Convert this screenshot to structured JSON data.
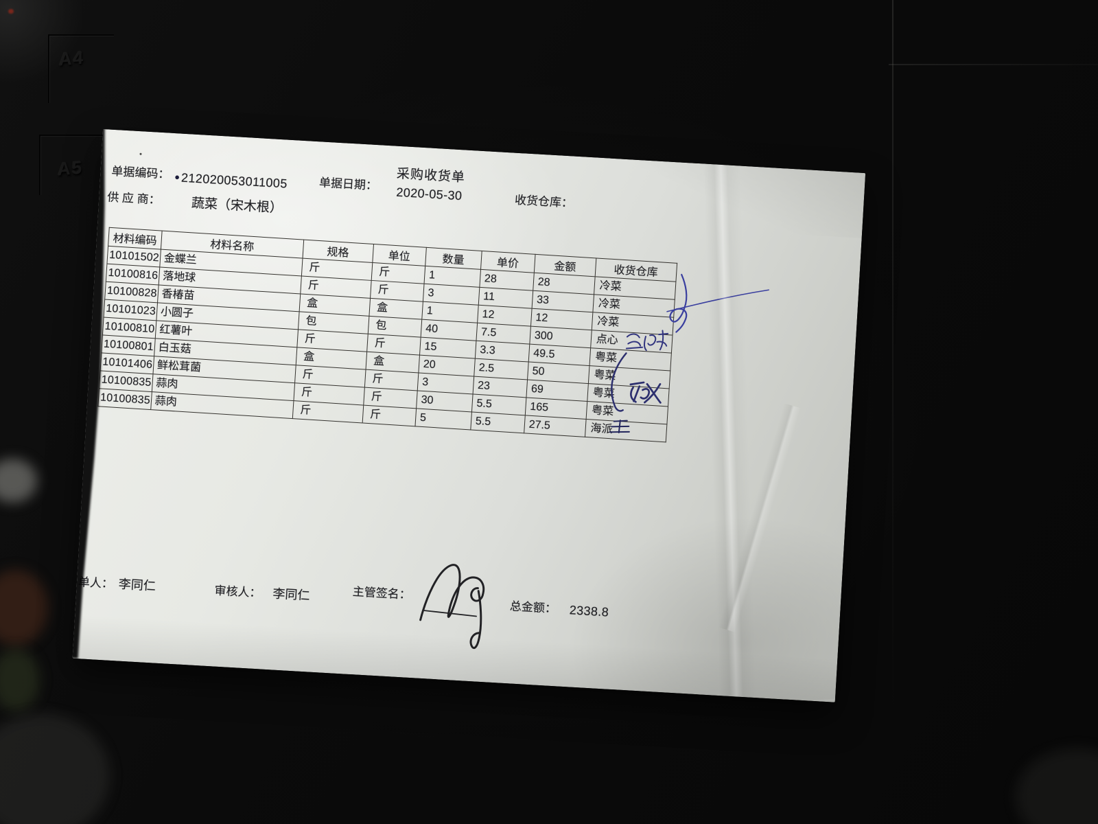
{
  "photo": {
    "tray_labels": [
      "A4",
      "A5"
    ]
  },
  "header": {
    "title": "采购收货单",
    "doc_code_label": "单据编码：",
    "doc_code": "212020053011005",
    "doc_date_label": "单据日期：",
    "doc_date": "2020-05-30",
    "recv_warehouse_label": "收货仓库：",
    "supplier_label": "供 应 商：",
    "supplier_value": "蔬菜（宋木根）"
  },
  "table": {
    "headers": [
      "材料编码",
      "材料名称",
      "规格",
      "单位",
      "数量",
      "单价",
      "金额",
      "收货仓库"
    ],
    "rows": [
      [
        "10101502",
        "金蝶兰",
        "斤",
        "斤",
        "1",
        "28",
        "28",
        "冷菜"
      ],
      [
        "10100816",
        "落地球",
        "斤",
        "斤",
        "3",
        "11",
        "33",
        "冷菜"
      ],
      [
        "10100828",
        "香椿苗",
        "盒",
        "盒",
        "1",
        "12",
        "12",
        "冷菜"
      ],
      [
        "10101023",
        "小圆子",
        "包",
        "包",
        "40",
        "7.5",
        "300",
        "点心"
      ],
      [
        "10100810",
        "红薯叶",
        "斤",
        "斤",
        "15",
        "3.3",
        "49.5",
        "粤菜"
      ],
      [
        "10100801",
        "白玉菇",
        "盒",
        "盒",
        "20",
        "2.5",
        "50",
        "粤菜"
      ],
      [
        "10101406",
        "鲜松茸菌",
        "斤",
        "斤",
        "3",
        "23",
        "69",
        "粤菜"
      ],
      [
        "10100835",
        "蒜肉",
        "斤",
        "斤",
        "30",
        "5.5",
        "165",
        "粤菜"
      ],
      [
        "10100835",
        "蒜肉",
        "斤",
        "斤",
        "5",
        "5.5",
        "27.5",
        "海派"
      ]
    ]
  },
  "footer": {
    "maker_label": "单人：",
    "maker_value": "李同仁",
    "reviewer_label": "审核人：",
    "reviewer_value": "李同仁",
    "sign_label": "主管签名：",
    "total_label": "总金额：",
    "total_value": "2338.8"
  },
  "colors": {
    "paper": "#e7e9e4",
    "print_ink": "#232327",
    "pen_blue": "#3a3f9f",
    "pen_dark_blue": "#2c2f6e",
    "signature_black": "#222225"
  }
}
